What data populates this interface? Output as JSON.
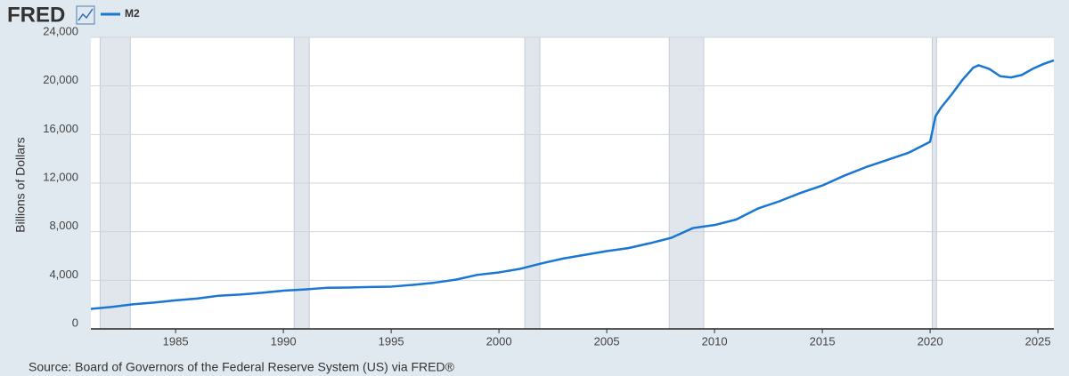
{
  "chart_data": {
    "type": "line",
    "logo": "FRED",
    "ylabel": "Billions of Dollars",
    "source": "Source: Board of Governors of the Federal Reserve System (US) via FRED®",
    "xlim": [
      1981.07,
      2025.74
    ],
    "xticks": [
      1985,
      1990,
      1995,
      2000,
      2005,
      2010,
      2015,
      2020,
      2025
    ],
    "ylim": [
      0,
      24000
    ],
    "yticks": [
      0,
      {
        "value": 4000,
        "label": "4,000"
      },
      {
        "value": 8000,
        "label": "8,000"
      },
      {
        "value": 12000,
        "label": "12,000"
      },
      {
        "value": 16000,
        "label": "16,000"
      },
      {
        "value": 20000,
        "label": "20,000"
      },
      {
        "value": 24000,
        "label": "24,000"
      }
    ],
    "grid": true,
    "recessions": [
      [
        1981.5,
        1982.9
      ],
      [
        1990.5,
        1991.2
      ],
      [
        2001.2,
        2001.9
      ],
      [
        2007.9,
        2009.5
      ],
      [
        2020.1,
        2020.3
      ]
    ],
    "recession_color": "#e1e6ed",
    "x": [
      1981.07,
      1982,
      1983,
      1984,
      1985,
      1986,
      1987,
      1988,
      1989,
      1990,
      1991,
      1992,
      1993,
      1994,
      1995,
      1996,
      1997,
      1998,
      1999,
      2000,
      2001,
      2002,
      2003,
      2004,
      2005,
      2006,
      2007,
      2008,
      2009,
      2010,
      2011,
      2012,
      2013,
      2014,
      2015,
      2016,
      2017,
      2018,
      2019,
      2020,
      2020.25,
      2020.5,
      2021,
      2021.5,
      2022,
      2022.25,
      2022.75,
      2023.25,
      2023.75,
      2024.25,
      2024.75,
      2025.25,
      2025.74
    ],
    "series": [
      {
        "name": "M2",
        "color": "#1976d2",
        "values": [
          1650,
          1800,
          2020,
          2170,
          2350,
          2500,
          2730,
          2830,
          2970,
          3150,
          3250,
          3380,
          3400,
          3450,
          3480,
          3620,
          3800,
          4050,
          4450,
          4650,
          4950,
          5400,
          5800,
          6100,
          6400,
          6650,
          7050,
          7500,
          8300,
          8550,
          9000,
          9900,
          10500,
          11200,
          11800,
          12600,
          13300,
          13900,
          14500,
          15400,
          17500,
          18200,
          19300,
          20500,
          21500,
          21700,
          21400,
          20800,
          20700,
          20900,
          21400,
          21800,
          22100
        ]
      }
    ]
  }
}
